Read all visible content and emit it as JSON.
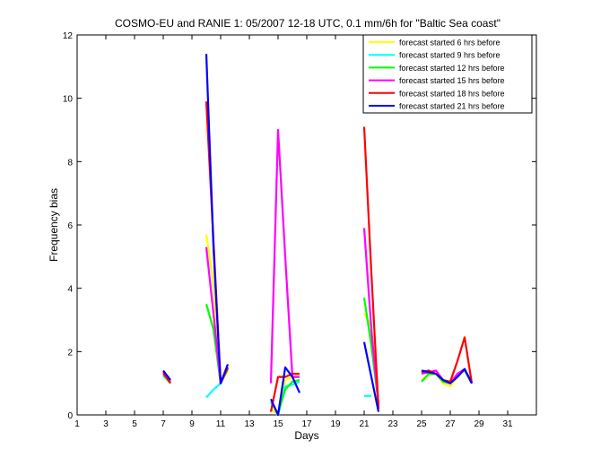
{
  "chart_data": {
    "type": "line",
    "title": "COSMO-EU and RANIE 1: 05/2007 12-18 UTC, 0.1 mm/6h for \"Baltic Sea coast\"",
    "xlabel": "Days",
    "ylabel": "Frequency bias",
    "xlim": [
      1,
      33
    ],
    "ylim": [
      0,
      12
    ],
    "xticks": [
      "1",
      "3",
      "5",
      "7",
      "9",
      "11",
      "13",
      "15",
      "17",
      "19",
      "21",
      "23",
      "25",
      "27",
      "29",
      "31"
    ],
    "yticks": [
      "0",
      "2",
      "4",
      "6",
      "8",
      "10",
      "12"
    ],
    "grid": false,
    "legend_position": "top-right",
    "series": [
      {
        "name": "forecast started 6 hrs before",
        "color": "#ffff00",
        "points": [
          [
            7,
            1.3
          ],
          [
            7.5,
            1.05
          ],
          [
            10,
            5.7
          ],
          [
            10.5,
            4.2
          ],
          [
            11,
            1.05
          ],
          [
            11.5,
            1.4
          ],
          [
            14.5,
            0.2
          ],
          [
            15,
            0.0
          ],
          [
            15.5,
            1.1
          ],
          [
            16,
            1.2
          ],
          [
            16.5,
            1.2
          ],
          [
            21,
            3.2
          ],
          [
            21.5,
            2.8
          ],
          [
            22,
            0.3
          ],
          [
            25,
            1.1
          ],
          [
            25.5,
            1.25
          ],
          [
            26,
            1.3
          ],
          [
            26.5,
            1.0
          ],
          [
            27,
            0.9
          ],
          [
            27.5,
            1.2
          ],
          [
            28,
            1.4
          ],
          [
            28.5,
            1.1
          ]
        ]
      },
      {
        "name": "forecast started 9 hrs before",
        "color": "#00ffff",
        "points": [
          [
            10,
            0.55
          ],
          [
            10.5,
            0.8
          ],
          [
            11,
            1.0
          ],
          [
            15,
            0.0
          ],
          [
            15.5,
            0.9
          ],
          [
            16,
            0.95
          ],
          [
            16.5,
            1.05
          ],
          [
            21,
            0.6
          ],
          [
            21.5,
            0.6
          ]
        ]
      },
      {
        "name": "forecast started 12 hrs before",
        "color": "#00ff00",
        "points": [
          [
            7,
            1.25
          ],
          [
            7.5,
            1.0
          ],
          [
            10,
            3.5
          ],
          [
            10.5,
            2.7
          ],
          [
            11,
            1.0
          ],
          [
            11.5,
            1.45
          ],
          [
            14.5,
            0.4
          ],
          [
            15,
            0.05
          ],
          [
            15.5,
            0.8
          ],
          [
            16,
            1.05
          ],
          [
            16.5,
            1.1
          ],
          [
            21,
            3.7
          ],
          [
            21.5,
            2.2
          ],
          [
            22,
            0.35
          ],
          [
            25,
            1.05
          ],
          [
            25.5,
            1.3
          ],
          [
            26,
            1.3
          ],
          [
            26.5,
            1.05
          ],
          [
            27,
            1.0
          ],
          [
            27.5,
            1.3
          ],
          [
            28,
            1.4
          ],
          [
            28.5,
            1.0
          ]
        ]
      },
      {
        "name": "forecast started 15 hrs before",
        "color": "#ff00ff",
        "points": [
          [
            7,
            1.3
          ],
          [
            7.5,
            1.05
          ],
          [
            10,
            5.3
          ],
          [
            10.5,
            3.2
          ],
          [
            11,
            1.0
          ],
          [
            11.5,
            1.5
          ],
          [
            14.5,
            1.0
          ],
          [
            15,
            9.0
          ],
          [
            15.5,
            5.0
          ],
          [
            16,
            1.2
          ],
          [
            16.5,
            1.2
          ],
          [
            21,
            5.9
          ],
          [
            21.5,
            2.7
          ],
          [
            22,
            0.3
          ],
          [
            25,
            1.3
          ],
          [
            25.5,
            1.35
          ],
          [
            26,
            1.4
          ],
          [
            26.5,
            1.1
          ],
          [
            27,
            1.0
          ],
          [
            27.5,
            1.3
          ],
          [
            28,
            1.45
          ],
          [
            28.5,
            1.0
          ]
        ]
      },
      {
        "name": "forecast started 18 hrs before",
        "color": "#ff0000",
        "points": [
          [
            7,
            1.35
          ],
          [
            7.5,
            1.0
          ],
          [
            10,
            9.9
          ],
          [
            10.5,
            5.5
          ],
          [
            11,
            1.0
          ],
          [
            11.5,
            1.5
          ],
          [
            14.5,
            0.1
          ],
          [
            15,
            1.2
          ],
          [
            15.5,
            1.2
          ],
          [
            16,
            1.3
          ],
          [
            16.5,
            1.3
          ],
          [
            21,
            9.1
          ],
          [
            21.5,
            4.5
          ],
          [
            22,
            0.2
          ],
          [
            25,
            1.35
          ],
          [
            25.5,
            1.4
          ],
          [
            26,
            1.3
          ],
          [
            26.5,
            1.1
          ],
          [
            27,
            1.05
          ],
          [
            27.5,
            1.7
          ],
          [
            28,
            2.45
          ],
          [
            28.5,
            1.0
          ]
        ]
      },
      {
        "name": "forecast started 21 hrs before",
        "color": "#0000ff",
        "points": [
          [
            7,
            1.4
          ],
          [
            7.5,
            1.1
          ],
          [
            10,
            11.4
          ],
          [
            10.5,
            5.3
          ],
          [
            11,
            1.0
          ],
          [
            11.5,
            1.6
          ],
          [
            14.5,
            0.5
          ],
          [
            15,
            0.0
          ],
          [
            15.5,
            1.5
          ],
          [
            16,
            1.2
          ],
          [
            16.5,
            0.7
          ],
          [
            21,
            2.3
          ],
          [
            21.5,
            1.2
          ],
          [
            22,
            0.1
          ],
          [
            25,
            1.4
          ],
          [
            25.5,
            1.35
          ],
          [
            26,
            1.3
          ],
          [
            26.5,
            1.1
          ],
          [
            27,
            1.0
          ],
          [
            27.5,
            1.2
          ],
          [
            28,
            1.45
          ],
          [
            28.5,
            1.0
          ]
        ]
      }
    ]
  }
}
